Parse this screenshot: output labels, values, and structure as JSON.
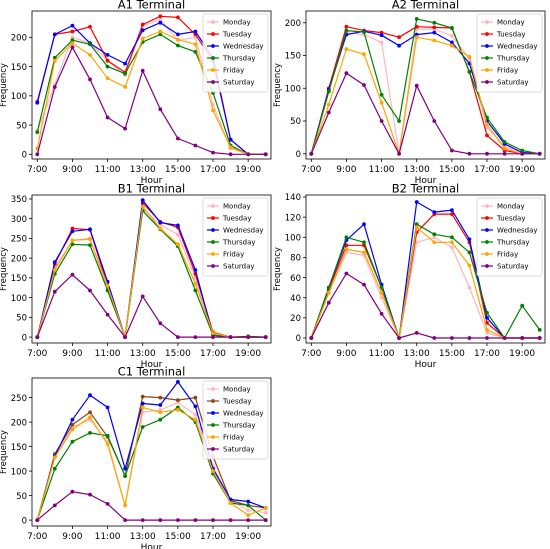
{
  "chart_data": [
    {
      "type": "line",
      "title": "A1 Terminal",
      "xlabel": "Hour",
      "ylabel": "Frequency",
      "x": [
        7,
        8,
        9,
        10,
        11,
        12,
        13,
        14,
        15,
        16,
        17,
        18,
        19,
        20
      ],
      "xticks": [
        7,
        9,
        11,
        13,
        15,
        17,
        19
      ],
      "xtick_labels": [
        "7:00",
        "9:00",
        "11:00",
        "13:00",
        "15:00",
        "17:00",
        "19:00"
      ],
      "xlim": [
        6.7,
        20.3
      ],
      "ylim": [
        -8,
        245
      ],
      "yticks": [
        0,
        50,
        100,
        150,
        200
      ],
      "legend_position": "upper right",
      "series": [
        {
          "name": "Monday",
          "color": "#ffb6c1",
          "values": [
            40,
            120,
            200,
            190,
            160,
            135,
            220,
            230,
            195,
            200,
            85,
            10,
            0,
            0
          ]
        },
        {
          "name": "Tuesday",
          "color": "#ff0000",
          "values": [
            90,
            205,
            210,
            218,
            160,
            140,
            222,
            236,
            234,
            205,
            160,
            25,
            0,
            0
          ]
        },
        {
          "name": "Wednesday",
          "color": "#0000ff",
          "values": [
            88,
            205,
            220,
            190,
            170,
            155,
            212,
            225,
            205,
            210,
            165,
            25,
            0,
            0
          ]
        },
        {
          "name": "Thursday",
          "color": "#008000",
          "values": [
            38,
            165,
            195,
            188,
            150,
            138,
            192,
            205,
            186,
            175,
            105,
            15,
            0,
            0
          ]
        },
        {
          "name": "Friday",
          "color": "#ffa500",
          "values": [
            10,
            160,
            190,
            170,
            130,
            115,
            198,
            210,
            196,
            188,
            75,
            12,
            0,
            0
          ]
        },
        {
          "name": "Saturday",
          "color": "#800080",
          "values": [
            0,
            115,
            183,
            128,
            63,
            44,
            143,
            77,
            27,
            15,
            3,
            0,
            0,
            0
          ]
        }
      ]
    },
    {
      "type": "line",
      "title": "A2 Terminal",
      "xlabel": "Hour",
      "ylabel": "Frequency",
      "x": [
        7,
        8,
        9,
        10,
        11,
        12,
        13,
        14,
        15,
        16,
        17,
        18,
        19,
        20
      ],
      "xticks": [
        7,
        9,
        11,
        13,
        15,
        17,
        19
      ],
      "xtick_labels": [
        "7:00",
        "9:00",
        "11:00",
        "13:00",
        "15:00",
        "17:00",
        "19:00"
      ],
      "xlim": [
        6.7,
        20.3
      ],
      "ylim": [
        -8,
        218
      ],
      "yticks": [
        0,
        50,
        100,
        150,
        200
      ],
      "legend_position": "upper right",
      "series": [
        {
          "name": "Monday",
          "color": "#ffb6c1",
          "values": [
            0,
            95,
            185,
            182,
            170,
            0,
            190,
            190,
            180,
            145,
            40,
            12,
            0,
            0
          ]
        },
        {
          "name": "Tuesday",
          "color": "#ff0000",
          "values": [
            0,
            100,
            194,
            188,
            185,
            178,
            194,
            193,
            192,
            125,
            28,
            5,
            0,
            0
          ]
        },
        {
          "name": "Wednesday",
          "color": "#0000ff",
          "values": [
            0,
            98,
            182,
            187,
            181,
            165,
            182,
            185,
            170,
            138,
            50,
            15,
            2,
            0
          ]
        },
        {
          "name": "Thursday",
          "color": "#008000",
          "values": [
            0,
            95,
            188,
            186,
            90,
            50,
            206,
            200,
            192,
            125,
            55,
            18,
            5,
            0
          ]
        },
        {
          "name": "Friday",
          "color": "#ffa500",
          "values": [
            0,
            75,
            160,
            152,
            78,
            0,
            178,
            173,
            165,
            148,
            45,
            8,
            0,
            0
          ]
        },
        {
          "name": "Saturday",
          "color": "#800080",
          "values": [
            0,
            63,
            123,
            105,
            50,
            0,
            104,
            50,
            5,
            0,
            0,
            0,
            0,
            0
          ]
        }
      ]
    },
    {
      "type": "line",
      "title": "B1 Terminal",
      "xlabel": "Hour",
      "ylabel": "Frequency",
      "x": [
        7,
        8,
        9,
        10,
        11,
        12,
        13,
        14,
        15,
        16,
        17,
        18,
        19,
        20
      ],
      "xticks": [
        7,
        9,
        11,
        13,
        15,
        17,
        19
      ],
      "xtick_labels": [
        "7:00",
        "9:00",
        "11:00",
        "13:00",
        "15:00",
        "17:00",
        "19:00"
      ],
      "xlim": [
        6.7,
        20.3
      ],
      "ylim": [
        -15,
        360
      ],
      "yticks": [
        0,
        50,
        100,
        150,
        200,
        250,
        300,
        350
      ],
      "legend_position": "upper right",
      "series": [
        {
          "name": "Monday",
          "color": "#ffb6c1",
          "values": [
            0,
            175,
            245,
            250,
            120,
            0,
            325,
            285,
            260,
            150,
            10,
            0,
            0,
            0
          ]
        },
        {
          "name": "Tuesday",
          "color": "#ff0000",
          "values": [
            0,
            185,
            275,
            272,
            130,
            0,
            340,
            292,
            278,
            160,
            12,
            0,
            0,
            0
          ]
        },
        {
          "name": "Wednesday",
          "color": "#0000ff",
          "values": [
            0,
            190,
            268,
            273,
            140,
            0,
            347,
            290,
            283,
            170,
            5,
            0,
            0,
            0
          ]
        },
        {
          "name": "Thursday",
          "color": "#008000",
          "values": [
            0,
            160,
            235,
            233,
            118,
            0,
            320,
            273,
            230,
            118,
            5,
            0,
            2,
            0
          ]
        },
        {
          "name": "Friday",
          "color": "#ffa500",
          "values": [
            0,
            170,
            245,
            248,
            130,
            0,
            330,
            275,
            235,
            135,
            10,
            0,
            0,
            0
          ]
        },
        {
          "name": "Saturday",
          "color": "#800080",
          "values": [
            0,
            115,
            158,
            118,
            57,
            0,
            103,
            35,
            0,
            0,
            0,
            0,
            0,
            0
          ]
        }
      ]
    },
    {
      "type": "line",
      "title": "B2  Terminal",
      "xlabel": "Hour",
      "ylabel": "Frequency",
      "x": [
        7,
        8,
        9,
        10,
        11,
        12,
        13,
        14,
        15,
        16,
        17,
        18,
        19,
        20
      ],
      "xticks": [
        7,
        9,
        11,
        13,
        15,
        17,
        19
      ],
      "xtick_labels": [
        "7:00",
        "9:00",
        "11:00",
        "13:00",
        "15:00",
        "17:00",
        "19:00"
      ],
      "xlim": [
        6.7,
        20.3
      ],
      "ylim": [
        -5,
        142
      ],
      "yticks": [
        0,
        20,
        40,
        60,
        80,
        100,
        120,
        140
      ],
      "legend_position": "upper right",
      "series": [
        {
          "name": "Monday",
          "color": "#ffb6c1",
          "values": [
            0,
            45,
            85,
            82,
            40,
            0,
            95,
            100,
            90,
            50,
            5,
            0,
            0,
            0
          ]
        },
        {
          "name": "Tuesday",
          "color": "#ff0000",
          "values": [
            0,
            48,
            92,
            92,
            50,
            0,
            105,
            123,
            123,
            95,
            15,
            0,
            0,
            0
          ]
        },
        {
          "name": "Wednesday",
          "color": "#0000ff",
          "values": [
            0,
            50,
            97,
            113,
            53,
            0,
            135,
            125,
            127,
            98,
            20,
            0,
            0,
            0
          ]
        },
        {
          "name": "Thursday",
          "color": "#008000",
          "values": [
            0,
            50,
            100,
            95,
            50,
            0,
            113,
            103,
            100,
            85,
            25,
            0,
            32,
            8
          ]
        },
        {
          "name": "Friday",
          "color": "#ffa500",
          "values": [
            0,
            45,
            88,
            85,
            45,
            0,
            110,
            95,
            95,
            72,
            8,
            0,
            0,
            0
          ]
        },
        {
          "name": "Saturday",
          "color": "#800080",
          "values": [
            0,
            35,
            64,
            53,
            24,
            0,
            5,
            0,
            0,
            0,
            0,
            0,
            0,
            0
          ]
        }
      ]
    },
    {
      "type": "line",
      "title": "C1 Terminal",
      "xlabel": "Hour",
      "ylabel": "Frequency",
      "x": [
        7,
        8,
        9,
        10,
        11,
        12,
        13,
        14,
        15,
        16,
        17,
        18,
        19,
        20
      ],
      "xticks": [
        7,
        9,
        11,
        13,
        15,
        17,
        19
      ],
      "xtick_labels": [
        "7:00",
        "9:00",
        "11:00",
        "13:00",
        "15:00",
        "17:00",
        "19:00"
      ],
      "xlim": [
        6.7,
        20.3
      ],
      "ylim": [
        -12,
        290
      ],
      "yticks": [
        0,
        50,
        100,
        150,
        200,
        250
      ],
      "legend_position": "upper right",
      "series": [
        {
          "name": "Monday",
          "color": "#ffb6c1",
          "values": [
            0,
            130,
            190,
            205,
            160,
            30,
            220,
            225,
            240,
            215,
            110,
            40,
            20,
            15
          ]
        },
        {
          "name": "Tuesday",
          "color": "#8b4513",
          "values": [
            0,
            135,
            195,
            220,
            170,
            90,
            252,
            250,
            245,
            250,
            130,
            40,
            30,
            25
          ]
        },
        {
          "name": "Wednesday",
          "color": "#0000ff",
          "values": [
            0,
            130,
            205,
            255,
            230,
            105,
            238,
            235,
            282,
            232,
            105,
            42,
            38,
            25
          ]
        },
        {
          "name": "Thursday",
          "color": "#008000",
          "values": [
            0,
            105,
            160,
            178,
            172,
            90,
            190,
            205,
            230,
            200,
            95,
            35,
            30,
            0
          ]
        },
        {
          "name": "Friday",
          "color": "#ffa500",
          "values": [
            0,
            128,
            185,
            210,
            155,
            30,
            230,
            220,
            225,
            205,
            100,
            35,
            10,
            25
          ]
        },
        {
          "name": "Saturday",
          "color": "#800080",
          "values": [
            0,
            30,
            58,
            52,
            33,
            0,
            0,
            0,
            0,
            0,
            0,
            0,
            0,
            0
          ]
        }
      ]
    }
  ]
}
